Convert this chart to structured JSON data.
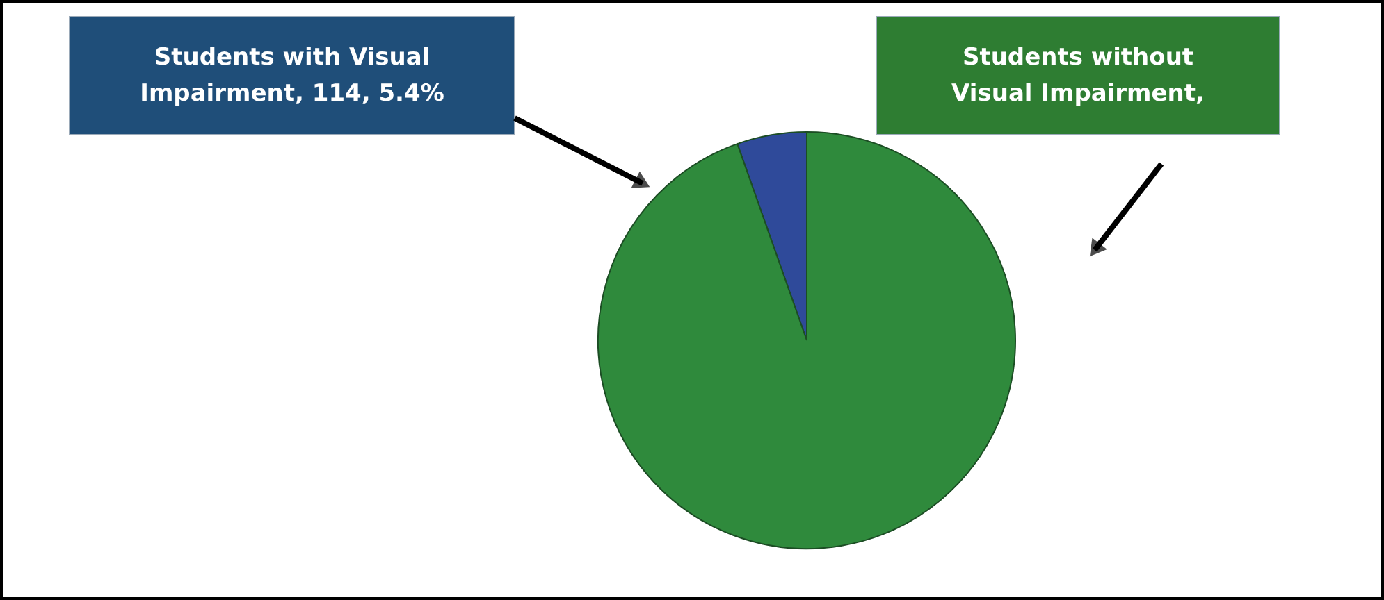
{
  "chart_data": {
    "type": "pie",
    "categories": [
      null,
      null
    ],
    "values": [
      5.4,
      94.6
    ],
    "annotations": [
      "Students with Visual Impairment, 114, 5.4%",
      "Students without Visual Impairment,"
    ],
    "colors": [
      "#2f4a9a",
      "#2f8a3c"
    ]
  }
}
